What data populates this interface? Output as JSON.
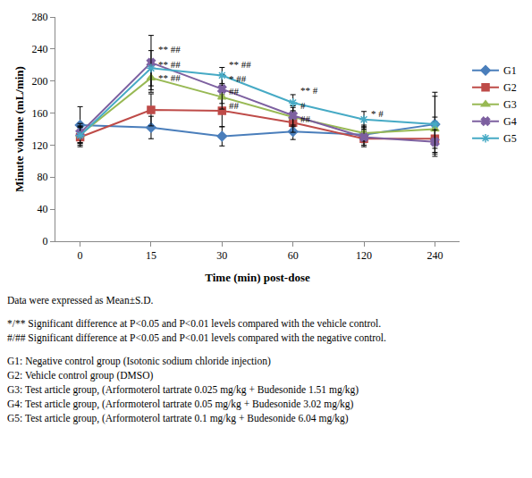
{
  "chart_data": {
    "type": "line",
    "x_label": "Time (min) post-dose",
    "y_label": "Minute volume (mL/min)",
    "categories": [
      "0",
      "15",
      "30",
      "60",
      "120",
      "240"
    ],
    "ylim": [
      0,
      280
    ],
    "yticks": [
      0,
      40,
      80,
      120,
      160,
      200,
      240,
      280
    ],
    "grid": false,
    "legend": "right",
    "series": [
      {
        "name": "G1",
        "color": "#4a7ebb",
        "marker": "diamond",
        "values": [
          145,
          142,
          131,
          137,
          133,
          146
        ],
        "sd": [
          23,
          14,
          12,
          10,
          10,
          40
        ]
      },
      {
        "name": "G2",
        "color": "#be4b48",
        "marker": "square",
        "values": [
          130,
          164,
          163,
          148,
          128,
          128
        ],
        "sd": [
          12,
          20,
          20,
          12,
          10,
          12
        ]
      },
      {
        "name": "G3",
        "color": "#98b954",
        "marker": "triangle-up",
        "values": [
          133,
          204,
          180,
          155,
          135,
          140
        ],
        "sd": [
          10,
          18,
          15,
          12,
          10,
          15
        ]
      },
      {
        "name": "G4",
        "color": "#7d60a0",
        "marker": "x",
        "values": [
          135,
          223,
          190,
          157,
          130,
          124
        ],
        "sd": [
          12,
          34,
          18,
          12,
          10,
          15
        ]
      },
      {
        "name": "G5",
        "color": "#46aac5",
        "marker": "asterisk",
        "values": [
          132,
          216,
          207,
          173,
          152,
          146
        ],
        "sd": [
          12,
          22,
          10,
          10,
          10,
          35
        ]
      }
    ],
    "annotations": [
      {
        "x": "15",
        "y": 240,
        "text": "** ##"
      },
      {
        "x": "15",
        "y": 221,
        "text": "** ##"
      },
      {
        "x": "15",
        "y": 204,
        "text": "** ##"
      },
      {
        "x": "30",
        "y": 221,
        "text": "** ##"
      },
      {
        "x": "30",
        "y": 203,
        "text": "* ##"
      },
      {
        "x": "30",
        "y": 187,
        "text": "##"
      },
      {
        "x": "30",
        "y": 170,
        "text": "##"
      },
      {
        "x": "60",
        "y": 188,
        "text": "** #"
      },
      {
        "x": "60",
        "y": 170,
        "text": "#"
      },
      {
        "x": "60",
        "y": 153,
        "text": "##"
      },
      {
        "x": "120",
        "y": 160,
        "text": "* #"
      }
    ],
    "caption": [
      [
        "Data were expressed as Mean±S.D."
      ],
      [
        "*/** Significant difference at P<0.05 and P<0.01 levels compared with the vehicle control.",
        "#/## Significant difference at P<0.05 and P<0.01 levels compared with the negative control."
      ],
      [
        "G1: Negative control group (Isotonic sodium chloride injection)",
        "G2: Vehicle control group (DMSO)",
        "G3: Test article group, (Arformoterol tartrate 0.025 mg/kg + Budesonide 1.51 mg/kg)",
        "G4: Test article group, (Arformoterol tartrate 0.05 mg/kg + Budesonide 3.02 mg/kg)",
        "G5: Test article group, (Arformoterol tartrate 0.1 mg/kg + Budesonide 6.04 mg/kg)"
      ]
    ]
  }
}
